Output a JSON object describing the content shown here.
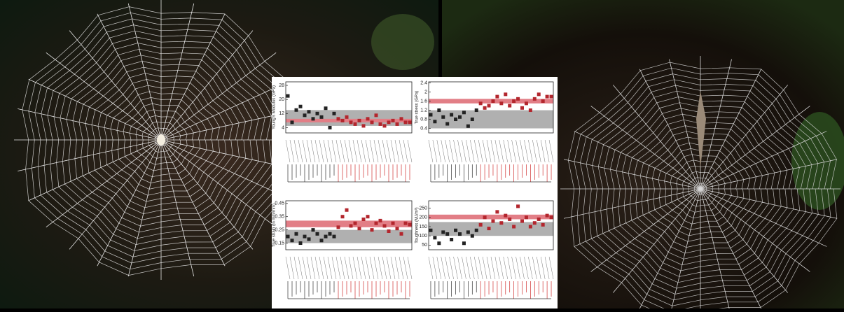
{
  "chart_data": [
    {
      "type": "point",
      "ylabel": "Young's Modulus (GPa)",
      "ylim": [
        1,
        30
      ],
      "yticks": [
        4,
        12,
        20,
        28
      ],
      "bands": [
        {
          "range": [
            5,
            14
          ],
          "color": "#b0b0b0"
        },
        {
          "range": [
            7,
            9
          ],
          "color": "#e27e86"
        }
      ],
      "series": [
        {
          "color": "#222222",
          "values": [
            22,
            7,
            14,
            16,
            11,
            13,
            9,
            12,
            10,
            15,
            4,
            12,
            null,
            null,
            null,
            null,
            null,
            null,
            null,
            null,
            null,
            null,
            null,
            null,
            null,
            null,
            null,
            null,
            null,
            null
          ]
        },
        {
          "color": "#b3262d",
          "values": [
            null,
            null,
            null,
            null,
            null,
            null,
            null,
            null,
            null,
            null,
            null,
            null,
            9,
            8,
            10,
            7,
            6,
            8,
            5,
            9,
            7,
            11,
            6,
            5,
            7,
            8,
            6,
            9,
            7,
            7
          ]
        }
      ]
    },
    {
      "type": "point",
      "ylabel": "True stress (GPa)",
      "ylim": [
        0.2,
        2.45
      ],
      "yticks": [
        0.4,
        0.8,
        1.2,
        1.6,
        2.0,
        2.4
      ],
      "bands": [
        {
          "range": [
            0.4,
            1.2
          ],
          "color": "#b0b0b0"
        },
        {
          "range": [
            1.5,
            1.7
          ],
          "color": "#e27e86"
        }
      ],
      "series": [
        {
          "color": "#222222",
          "values": [
            1.0,
            0.7,
            1.2,
            0.9,
            0.6,
            1.0,
            0.8,
            0.9,
            1.1,
            0.5,
            0.8,
            1.2,
            null,
            null,
            null,
            null,
            null,
            null,
            null,
            null,
            null,
            null,
            null,
            null,
            null,
            null,
            null,
            null,
            null,
            null
          ]
        },
        {
          "color": "#b3262d",
          "values": [
            null,
            null,
            null,
            null,
            null,
            null,
            null,
            null,
            null,
            null,
            null,
            null,
            1.5,
            1.3,
            1.4,
            1.6,
            1.8,
            1.5,
            1.9,
            1.4,
            1.6,
            1.7,
            1.3,
            1.5,
            1.2,
            1.7,
            1.9,
            1.6,
            1.8,
            1.8
          ]
        }
      ]
    },
    {
      "type": "point",
      "ylabel": "True strain (ln mm/mm)",
      "ylim": [
        0.1,
        0.47
      ],
      "yticks": [
        0.15,
        0.25,
        0.35,
        0.45
      ],
      "bands": [
        {
          "range": [
            0.15,
            0.25
          ],
          "color": "#b0b0b0"
        },
        {
          "range": [
            0.27,
            0.32
          ],
          "color": "#e27e86"
        }
      ],
      "series": [
        {
          "color": "#222222",
          "values": [
            0.2,
            0.17,
            0.22,
            0.15,
            0.2,
            0.18,
            0.25,
            0.22,
            0.17,
            0.2,
            0.22,
            0.2,
            null,
            null,
            null,
            null,
            null,
            null,
            null,
            null,
            null,
            null,
            null,
            null,
            null,
            null,
            null,
            null,
            null,
            null
          ]
        },
        {
          "color": "#b3262d",
          "values": [
            null,
            null,
            null,
            null,
            null,
            null,
            null,
            null,
            null,
            null,
            null,
            null,
            0.27,
            0.35,
            0.4,
            0.28,
            0.3,
            0.26,
            0.33,
            0.35,
            0.25,
            0.3,
            0.32,
            0.28,
            0.24,
            0.3,
            0.26,
            0.22,
            0.3,
            0.29
          ]
        }
      ]
    },
    {
      "type": "point",
      "ylabel": "Toughness (MJ/m³)",
      "ylim": [
        25,
        290
      ],
      "yticks": [
        50,
        100,
        150,
        200,
        250
      ],
      "bands": [
        {
          "range": [
            100,
            175
          ],
          "color": "#b0b0b0"
        },
        {
          "range": [
            190,
            215
          ],
          "color": "#e27e86"
        }
      ],
      "series": [
        {
          "color": "#222222",
          "values": [
            130,
            90,
            60,
            120,
            110,
            80,
            130,
            110,
            60,
            120,
            100,
            130,
            null,
            null,
            null,
            null,
            null,
            null,
            null,
            null,
            null,
            null,
            null,
            null,
            null,
            null,
            null,
            null,
            null,
            null
          ]
        },
        {
          "color": "#b3262d",
          "values": [
            null,
            null,
            null,
            null,
            null,
            null,
            null,
            null,
            null,
            null,
            null,
            null,
            160,
            200,
            140,
            180,
            230,
            170,
            210,
            190,
            150,
            260,
            180,
            200,
            150,
            170,
            190,
            160,
            210,
            200
          ]
        }
      ]
    }
  ]
}
